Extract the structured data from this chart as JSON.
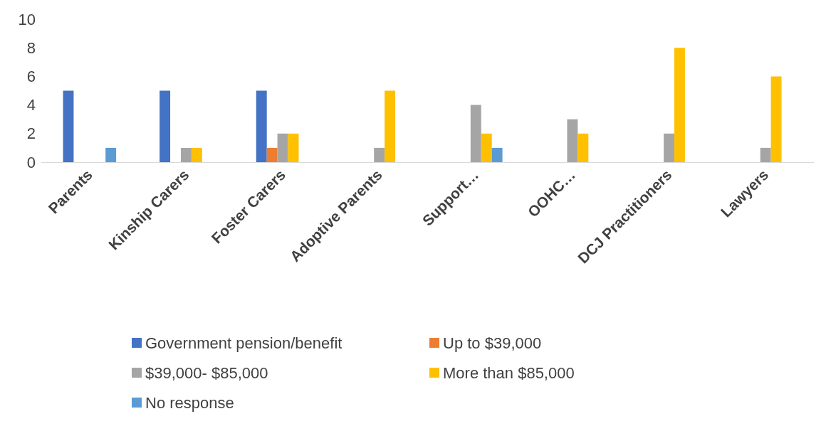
{
  "chart_data": {
    "type": "bar",
    "categories": [
      "Parents",
      "Kinship Carers",
      "Foster Carers",
      "Adoptive Parents",
      "Support…",
      "OOHC…",
      "DCJ Practitioners",
      "Lawyers"
    ],
    "series": [
      {
        "name": "Government pension/benefit",
        "color": "#4472c4",
        "values": [
          5,
          5,
          5,
          null,
          null,
          null,
          null,
          null
        ]
      },
      {
        "name": "Up to $39,000",
        "color": "#ed7d31",
        "values": [
          null,
          null,
          1,
          null,
          null,
          null,
          null,
          null
        ]
      },
      {
        "name": "$39,000- $85,000",
        "color": "#a5a5a5",
        "values": [
          null,
          1,
          2,
          1,
          4,
          3,
          2,
          1
        ]
      },
      {
        "name": "More than $85,000",
        "color": "#ffc000",
        "values": [
          null,
          1,
          2,
          5,
          2,
          2,
          8,
          6
        ]
      },
      {
        "name": "No response",
        "color": "#5b9bd5",
        "values": [
          1,
          null,
          null,
          null,
          1,
          null,
          null,
          null
        ]
      }
    ],
    "ylim": [
      0,
      10
    ],
    "yticks": [
      0,
      2,
      4,
      6,
      8,
      10
    ],
    "grid": false,
    "legend": "bottom"
  }
}
